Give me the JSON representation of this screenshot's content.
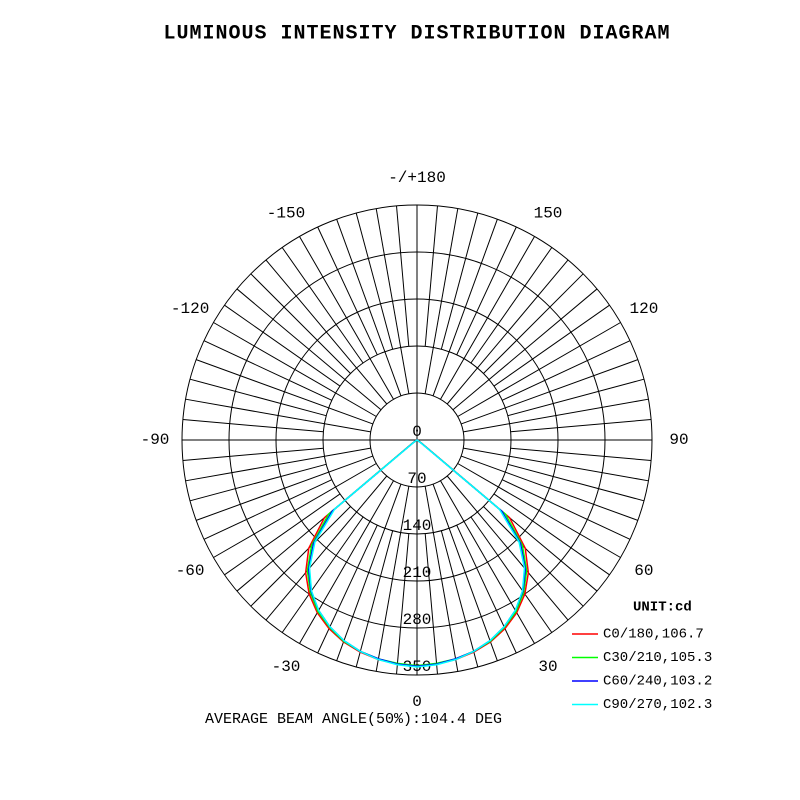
{
  "chart_data": {
    "type": "polar",
    "title": "LUMINOUS INTENSITY DISTRIBUTION DIAGRAM",
    "x": [
      -90,
      -85,
      -80,
      -75,
      -70,
      -65,
      -60,
      -55,
      -50,
      -45,
      -40,
      -35,
      -30,
      -25,
      -20,
      -15,
      -10,
      -5,
      0,
      5,
      10,
      15,
      20,
      25,
      30,
      35,
      40,
      45,
      50,
      55,
      60,
      65,
      70,
      75,
      80,
      85,
      90
    ],
    "series": [
      {
        "name": "C0/180,106.7",
        "color": "#ff0000",
        "values": [
          0,
          0,
          0,
          0,
          0,
          0,
          0,
          8,
          180,
          228,
          258,
          280,
          297,
          310,
          320,
          327,
          332,
          335,
          336,
          335,
          332,
          327,
          320,
          310,
          297,
          280,
          258,
          228,
          180,
          8,
          0,
          0,
          0,
          0,
          0,
          0,
          0
        ]
      },
      {
        "name": "C30/210,105.3",
        "color": "#00ff00",
        "values": [
          0,
          0,
          0,
          0,
          0,
          0,
          0,
          7,
          172,
          222,
          254,
          277,
          295,
          308,
          319,
          326,
          331,
          334,
          336,
          334,
          331,
          326,
          319,
          308,
          295,
          277,
          254,
          222,
          172,
          7,
          0,
          0,
          0,
          0,
          0,
          0,
          0
        ]
      },
      {
        "name": "C60/240,103.2",
        "color": "#0000ff",
        "values": [
          0,
          0,
          0,
          0,
          0,
          0,
          0,
          6,
          165,
          218,
          251,
          275,
          293,
          307,
          318,
          326,
          331,
          335,
          337,
          335,
          331,
          326,
          318,
          307,
          293,
          275,
          251,
          218,
          165,
          6,
          0,
          0,
          0,
          0,
          0,
          0,
          0
        ]
      },
      {
        "name": "C90/270,102.3",
        "color": "#00ffff",
        "values": [
          0,
          0,
          0,
          0,
          0,
          0,
          0,
          5,
          160,
          215,
          249,
          274,
          293,
          307,
          318,
          326,
          332,
          336,
          338,
          336,
          332,
          326,
          318,
          307,
          293,
          274,
          249,
          215,
          160,
          5,
          0,
          0,
          0,
          0,
          0,
          0,
          0
        ]
      }
    ],
    "xticks": [
      0,
      30,
      60,
      90,
      120,
      150,
      {
        "value": 180,
        "label": "-/+180"
      },
      -150,
      -120,
      -90,
      -60,
      -30
    ],
    "ylim": [
      0,
      350
    ],
    "yticks": [
      0,
      70,
      140,
      210,
      280,
      350
    ],
    "unit_label": "UNIT:cd",
    "annotation": "AVERAGE BEAM ANGLE(50%):104.4 DEG"
  }
}
